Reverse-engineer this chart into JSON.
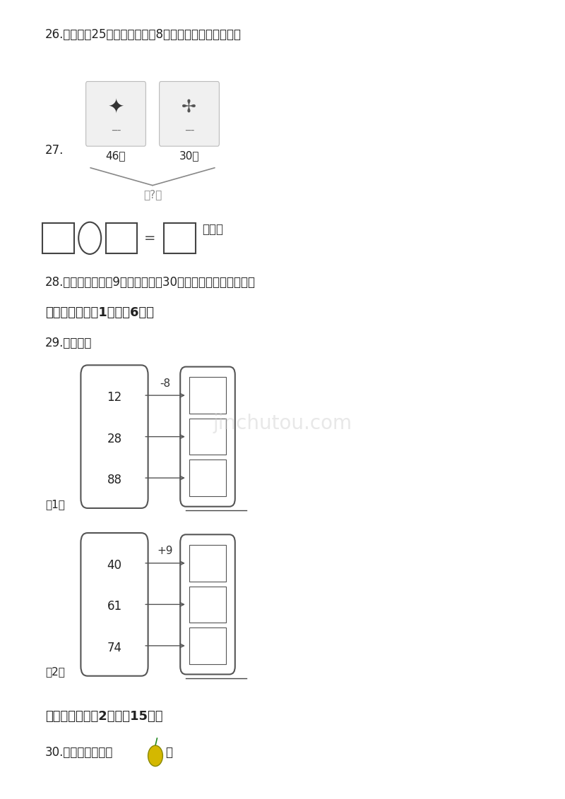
{
  "background_color": "#ffffff",
  "q26_text": "26.小明要写25个字，已经写了8个，还要写几个才写完？",
  "q27_label": "27.",
  "q27_brace_text": "共?只",
  "label_46": "46只",
  "label_30": "30只",
  "q28_text": "28.小红和小明吃了9个苹果，还剩30个，一共有多少个苹果？",
  "section6_title": "六、综合题（共1题；共6分）",
  "q29_text": "29.看图填空",
  "label1": "（1）",
  "label2": "（2）",
  "section7_title": "七、应用题（共2题；共15分）",
  "q30_text": "30.兰兰摘了多少个",
  "q30_suffix": "？",
  "diagram1_values": [
    "12",
    "28",
    "88"
  ],
  "diagram1_op": "-8",
  "diagram2_values": [
    "40",
    "61",
    "74"
  ],
  "diagram2_op": "+9",
  "watermark": "jinchutou.com",
  "text_color": "#222222",
  "light_gray": "#888888",
  "box_edge": "#555555"
}
